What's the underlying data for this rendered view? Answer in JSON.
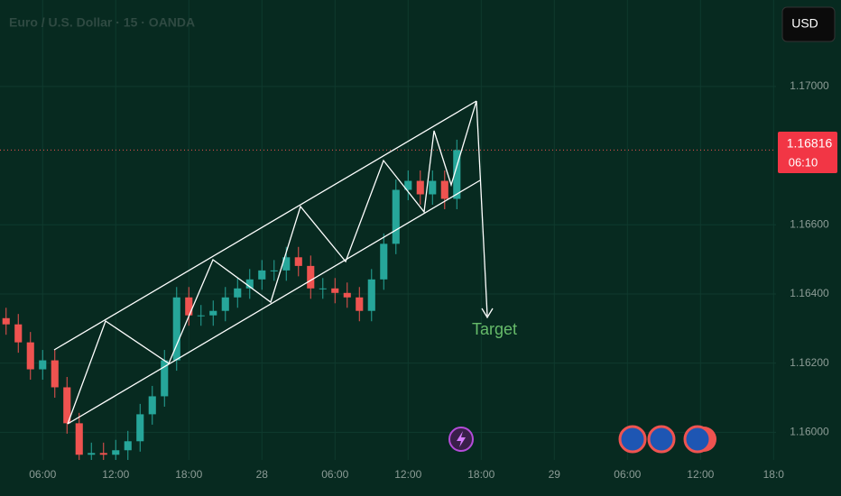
{
  "chart_data": {
    "type": "candlestick",
    "title": "Euro / U.S. Dollar · 15 · OANDA",
    "currency": "USD",
    "annotation": "Target",
    "last_price": 1.16816,
    "countdown": "06:10",
    "x": [
      3,
      4,
      5,
      6,
      7,
      8,
      9,
      10,
      11,
      12,
      13,
      14,
      15,
      16,
      17,
      18,
      19,
      20,
      21,
      22,
      23,
      24,
      25,
      26,
      27,
      28,
      29,
      30,
      31,
      32,
      33,
      34,
      35,
      36,
      37,
      38,
      39,
      40
    ],
    "open": [
      1.1633,
      1.16312,
      1.1626,
      1.16182,
      1.16208,
      1.1613,
      1.16026,
      1.15935,
      1.1594,
      1.15935,
      1.15948,
      1.15974,
      1.16052,
      1.16104,
      1.16208,
      1.1639,
      1.16338,
      1.16338,
      1.16351,
      1.1639,
      1.16416,
      1.16442,
      1.16468,
      1.16468,
      1.16506,
      1.16481,
      1.16416,
      1.16416,
      1.16403,
      1.1639,
      1.16351,
      1.16442,
      1.16545,
      1.16701,
      1.16727,
      1.16688,
      1.16727,
      1.16675
    ],
    "high": [
      1.1636,
      1.16342,
      1.1629,
      1.16238,
      1.16238,
      1.1616,
      1.16056,
      1.1597,
      1.1597,
      1.15978,
      1.16004,
      1.16082,
      1.16134,
      1.16238,
      1.1642,
      1.1642,
      1.16368,
      1.16381,
      1.1642,
      1.16446,
      1.16472,
      1.16498,
      1.16498,
      1.16536,
      1.16536,
      1.16511,
      1.16446,
      1.16446,
      1.16433,
      1.1642,
      1.16472,
      1.16575,
      1.16731,
      1.16757,
      1.16757,
      1.16757,
      1.16757,
      1.16846
    ],
    "low": [
      1.16282,
      1.1623,
      1.16152,
      1.16152,
      1.161,
      1.15996,
      1.15905,
      1.15905,
      1.15905,
      1.15905,
      1.15918,
      1.15944,
      1.16022,
      1.16074,
      1.16178,
      1.16308,
      1.16308,
      1.16308,
      1.16321,
      1.1636,
      1.16386,
      1.16412,
      1.16438,
      1.16438,
      1.16451,
      1.16386,
      1.16386,
      1.16373,
      1.1636,
      1.16321,
      1.16321,
      1.16412,
      1.16515,
      1.16671,
      1.16658,
      1.16658,
      1.16645,
      1.16645
    ],
    "close": [
      1.16312,
      1.1626,
      1.16182,
      1.16208,
      1.1613,
      1.16026,
      1.15935,
      1.1594,
      1.15935,
      1.15948,
      1.15974,
      1.16052,
      1.16104,
      1.16208,
      1.1639,
      1.16338,
      1.16338,
      1.16351,
      1.1639,
      1.16416,
      1.16442,
      1.16468,
      1.16468,
      1.16506,
      1.16481,
      1.16416,
      1.16416,
      1.16403,
      1.1639,
      1.16351,
      1.16442,
      1.16545,
      1.16701,
      1.16727,
      1.16688,
      1.16727,
      1.16675,
      1.16816
    ],
    "up_color": "#26a69a",
    "down_color": "#ef5350",
    "xlim": [
      2.5,
      66.2
    ],
    "ylim": [
      1.1592,
      1.1725
    ],
    "xticks": [
      {
        "value": 6,
        "label": "06:00"
      },
      {
        "value": 12,
        "label": "12:00"
      },
      {
        "value": 18,
        "label": "18:00"
      },
      {
        "value": 24,
        "label": "28"
      },
      {
        "value": 30,
        "label": "06:00"
      },
      {
        "value": 36,
        "label": "12:00"
      },
      {
        "value": 42,
        "label": "18:00"
      },
      {
        "value": 48,
        "label": "29"
      },
      {
        "value": 54,
        "label": "06:00"
      },
      {
        "value": 60,
        "label": "12:00"
      },
      {
        "value": 66,
        "label": "18:0"
      }
    ],
    "yticks": [
      {
        "value": 1.16,
        "label": "1.16000"
      },
      {
        "value": 1.162,
        "label": "1.16200"
      },
      {
        "value": 1.164,
        "label": "1.16400"
      },
      {
        "value": 1.166,
        "label": "1.16600"
      },
      {
        "value": 1.17,
        "label": "1.17000"
      }
    ],
    "grid": true
  }
}
